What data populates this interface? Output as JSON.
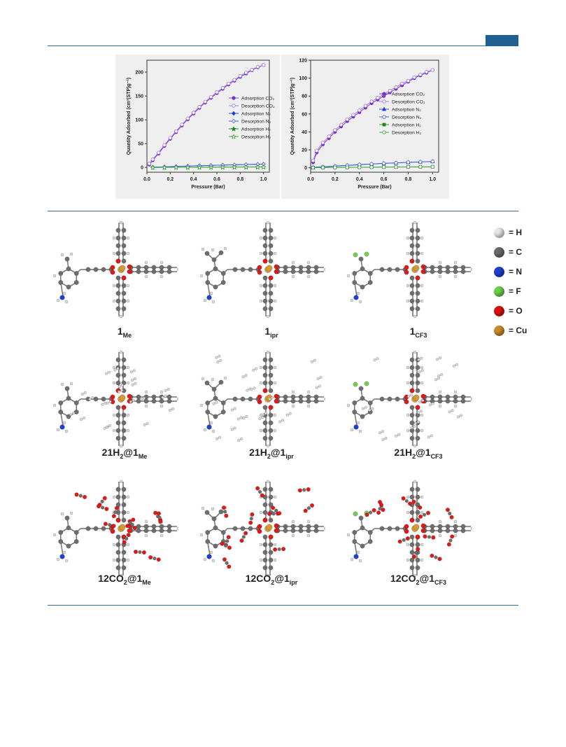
{
  "page": {
    "header_tag_color": "#1f5f93",
    "rule_color": "#2f6d9c"
  },
  "chart_data": [
    {
      "type": "scatter",
      "xlabel": "Pressure (Bar)",
      "ylabel": "Quantity Adsorbed (cm³(STP)g⁻¹)",
      "xlim": [
        0,
        1.05
      ],
      "ylim": [
        -10,
        225
      ],
      "xticks": [
        "0.0",
        "0.2",
        "0.4",
        "0.6",
        "0.8",
        "1.0"
      ],
      "yticks": [
        "0",
        "50",
        "100",
        "150",
        "200"
      ],
      "legend_position": "right",
      "series": [
        {
          "name": "Adsorption CO₂",
          "color": "#7a2fd6",
          "marker": "circle-filled",
          "x": [
            0.02,
            0.05,
            0.1,
            0.15,
            0.2,
            0.25,
            0.3,
            0.35,
            0.4,
            0.45,
            0.5,
            0.55,
            0.6,
            0.65,
            0.7,
            0.75,
            0.8,
            0.85,
            0.9,
            0.95,
            1.0
          ],
          "y": [
            6,
            15,
            29,
            45,
            60,
            74,
            88,
            101,
            113,
            125,
            136,
            146,
            156,
            165,
            174,
            182,
            190,
            197,
            204,
            210,
            215
          ]
        },
        {
          "name": "Desorption CO₂",
          "color": "#9b6fe0",
          "marker": "circle-open",
          "x": [
            0.02,
            0.05,
            0.1,
            0.15,
            0.2,
            0.25,
            0.3,
            0.35,
            0.4,
            0.45,
            0.5,
            0.55,
            0.6,
            0.65,
            0.7,
            0.75,
            0.8,
            0.85,
            0.9,
            0.95,
            1.0
          ],
          "y": [
            8,
            17,
            31,
            47,
            62,
            76,
            90,
            103,
            115,
            127,
            138,
            148,
            158,
            167,
            176,
            184,
            192,
            199,
            205,
            211,
            215
          ]
        },
        {
          "name": "Adsorption N₂",
          "color": "#1a3ee0",
          "marker": "diamond-filled",
          "x": [
            0.05,
            0.15,
            0.25,
            0.35,
            0.45,
            0.55,
            0.65,
            0.75,
            0.85,
            0.95,
            1.0
          ],
          "y": [
            0.5,
            1.2,
            2,
            2.8,
            3.5,
            4.2,
            4.9,
            5.5,
            6.1,
            6.6,
            7
          ]
        },
        {
          "name": "Desorption N₂",
          "color": "#3a5ad8",
          "marker": "diamond-open",
          "x": [
            0.05,
            0.15,
            0.25,
            0.35,
            0.45,
            0.55,
            0.65,
            0.75,
            0.85,
            0.95,
            1.0
          ],
          "y": [
            0.6,
            1.3,
            2.1,
            2.9,
            3.6,
            4.3,
            5,
            5.6,
            6.2,
            6.7,
            7
          ]
        },
        {
          "name": "Adsorption H₂",
          "color": "#1a8a1a",
          "marker": "star-filled",
          "x": [
            0.05,
            0.15,
            0.25,
            0.35,
            0.45,
            0.55,
            0.65,
            0.75,
            0.85,
            0.95,
            1.0
          ],
          "y": [
            0.1,
            0.2,
            0.3,
            0.4,
            0.5,
            0.6,
            0.7,
            0.8,
            0.9,
            1,
            1
          ]
        },
        {
          "name": "Desorption H₂",
          "color": "#3aa03a",
          "marker": "star-open",
          "x": [
            0.05,
            0.15,
            0.25,
            0.35,
            0.45,
            0.55,
            0.65,
            0.75,
            0.85,
            0.95,
            1.0
          ],
          "y": [
            0.1,
            0.2,
            0.3,
            0.4,
            0.5,
            0.6,
            0.7,
            0.8,
            0.9,
            1,
            1
          ]
        }
      ]
    },
    {
      "type": "scatter",
      "xlabel": "Pressure (Bar)",
      "ylabel": "Quantity Adsorbed (cm³(STP)g⁻¹)",
      "xlim": [
        0,
        1.05
      ],
      "ylim": [
        -5,
        120
      ],
      "xticks": [
        "0.0",
        "0.2",
        "0.4",
        "0.6",
        "0.8",
        "1.0"
      ],
      "yticks": [
        "0",
        "20",
        "40",
        "60",
        "80",
        "100",
        "120"
      ],
      "legend_position": "right",
      "series": [
        {
          "name": "Adsorption CO₂",
          "color": "#7a2fd6",
          "marker": "circle-filled",
          "x": [
            0.02,
            0.05,
            0.1,
            0.15,
            0.2,
            0.25,
            0.3,
            0.35,
            0.4,
            0.45,
            0.5,
            0.55,
            0.6,
            0.65,
            0.7,
            0.75,
            0.8,
            0.85,
            0.9,
            0.95,
            1.0
          ],
          "y": [
            6,
            17,
            26,
            33,
            40,
            46,
            52,
            57,
            62,
            67,
            72,
            76,
            80,
            84,
            88,
            92,
            96,
            100,
            103,
            106,
            109
          ]
        },
        {
          "name": "Desorption CO₂",
          "color": "#9b6fe0",
          "marker": "circle-open",
          "x": [
            0.02,
            0.05,
            0.1,
            0.15,
            0.2,
            0.25,
            0.3,
            0.35,
            0.4,
            0.45,
            0.5,
            0.55,
            0.6,
            0.65,
            0.7,
            0.75,
            0.8,
            0.85,
            0.9,
            0.95,
            1.0
          ],
          "y": [
            8,
            19,
            28,
            35,
            42,
            48,
            54,
            59,
            64,
            69,
            74,
            78,
            82,
            86,
            90,
            94,
            97,
            101,
            104,
            107,
            109
          ]
        },
        {
          "name": "Adsorption N₂",
          "color": "#1a3ee0",
          "marker": "triangle-filled",
          "x": [
            0.02,
            0.1,
            0.2,
            0.3,
            0.4,
            0.5,
            0.6,
            0.7,
            0.8,
            0.9,
            1.0
          ],
          "y": [
            0.3,
            1,
            1.8,
            2.6,
            3.4,
            4.1,
            4.8,
            5.4,
            6,
            6.5,
            7
          ]
        },
        {
          "name": "Desorption N₂",
          "color": "#3a5ad8",
          "marker": "circle-open",
          "x": [
            0.02,
            0.1,
            0.2,
            0.3,
            0.4,
            0.5,
            0.6,
            0.7,
            0.8,
            0.9,
            1.0
          ],
          "y": [
            0.4,
            1.1,
            1.9,
            2.7,
            3.5,
            4.2,
            4.9,
            5.5,
            6.1,
            6.6,
            7
          ]
        },
        {
          "name": "Adsorption H₂",
          "color": "#1a8a1a",
          "marker": "square-filled",
          "x": [
            0.02,
            0.1,
            0.2,
            0.3,
            0.4,
            0.5,
            0.6,
            0.7,
            0.8,
            0.9,
            1.0
          ],
          "y": [
            0.1,
            0.2,
            0.3,
            0.4,
            0.5,
            0.6,
            0.7,
            0.8,
            0.9,
            1,
            1
          ]
        },
        {
          "name": "Desorption H₂",
          "color": "#3aa03a",
          "marker": "circle-open",
          "x": [
            0.02,
            0.1,
            0.2,
            0.3,
            0.4,
            0.5,
            0.6,
            0.7,
            0.8,
            0.9,
            1.0
          ],
          "y": [
            0.1,
            0.2,
            0.3,
            0.4,
            0.5,
            0.6,
            0.7,
            0.8,
            0.9,
            1,
            1
          ]
        }
      ]
    }
  ],
  "figure": {
    "legend": [
      {
        "symbol": "H",
        "label": "= H",
        "color": "#e6e6e6"
      },
      {
        "symbol": "C",
        "label": "= C",
        "color": "#6a6a6a"
      },
      {
        "symbol": "N",
        "label": "= N",
        "color": "#1f3fd0"
      },
      {
        "symbol": "F",
        "label": "= F",
        "color": "#6ad04a"
      },
      {
        "symbol": "O",
        "label": "= O",
        "color": "#e01010"
      },
      {
        "symbol": "Cu",
        "label": "= Cu",
        "color": "#c98a2a"
      }
    ],
    "structures": [
      {
        "variant": "Me",
        "guest": "none",
        "prefix": "1",
        "sub": "Me"
      },
      {
        "variant": "ipr",
        "guest": "none",
        "prefix": "1",
        "sub": "ipr"
      },
      {
        "variant": "CF3",
        "guest": "none",
        "prefix": "1",
        "sub": "CF3"
      },
      {
        "variant": "Me",
        "guest": "H2",
        "prefix": "21H",
        "mid": "2",
        "at": "@1",
        "sub": "Me"
      },
      {
        "variant": "ipr",
        "guest": "H2",
        "prefix": "21H",
        "mid": "2",
        "at": "@1",
        "sub": "ipr"
      },
      {
        "variant": "CF3",
        "guest": "H2",
        "prefix": "21H",
        "mid": "2",
        "at": "@1",
        "sub": "CF3"
      },
      {
        "variant": "Me",
        "guest": "CO2",
        "prefix": "12CO",
        "mid": "2",
        "at": "@1",
        "sub": "Me"
      },
      {
        "variant": "ipr",
        "guest": "CO2",
        "prefix": "12CO",
        "mid": "2",
        "at": "@1",
        "sub": "ipr"
      },
      {
        "variant": "CF3",
        "guest": "CO2",
        "prefix": "12CO",
        "mid": "2",
        "at": "@1",
        "sub": "CF3"
      }
    ]
  }
}
